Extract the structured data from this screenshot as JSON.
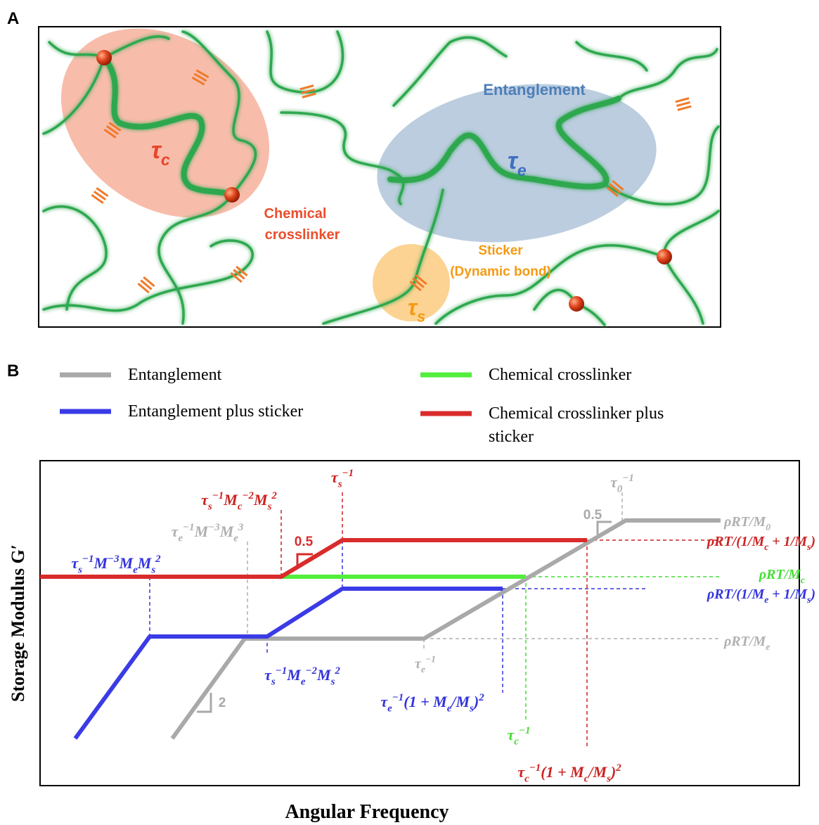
{
  "panel_a": {
    "label": "A",
    "tau_c": [
      {
        "t": "τ"
      },
      {
        "sub": "c"
      }
    ],
    "entanglement": "Entanglement",
    "tau_e": [
      {
        "t": "τ"
      },
      {
        "sub": "e"
      }
    ],
    "crosslinker_lines": [
      "Chemical",
      "crosslinker"
    ],
    "sticker_lines": [
      "Sticker",
      "(Dynamic bond)"
    ],
    "tau_s": [
      {
        "t": "τ"
      },
      {
        "sub": "s"
      }
    ]
  },
  "panel_b": {
    "label": "B",
    "legend": [
      {
        "name": "Entanglement",
        "color": "#a9a9a9"
      },
      {
        "name": "Entanglement plus sticker",
        "color": "#3b3be6"
      },
      {
        "name": "Chemical crosslinker",
        "color": "#52ee3c"
      },
      {
        "name": "Chemical crosslinker plus sticker",
        "color": "#d92b2b"
      }
    ],
    "y_axis_label": "Storage Modulus G′",
    "x_axis_label": "Angular Frequency",
    "slopes": [
      "0.5",
      "0.5",
      "2"
    ],
    "annotations": [
      {
        "color": "#3333dd",
        "parts": [
          {
            "t": "τ"
          },
          {
            "sub": "s"
          },
          {
            "sup": "−1"
          },
          {
            "t": "M"
          },
          {
            "sup": "−3"
          },
          {
            "t": "M"
          },
          {
            "sub": "e"
          },
          {
            "t": "M"
          },
          {
            "sub": "s"
          },
          {
            "sup": "2"
          }
        ]
      },
      {
        "color": "#b0b0b0",
        "parts": [
          {
            "t": "τ"
          },
          {
            "sub": "e"
          },
          {
            "sup": "−1"
          },
          {
            "t": "M"
          },
          {
            "sup": "−3"
          },
          {
            "t": "M"
          },
          {
            "sub": "e"
          },
          {
            "sup": "3"
          }
        ]
      },
      {
        "color": "#cc2222",
        "parts": [
          {
            "t": "τ"
          },
          {
            "sub": "s"
          },
          {
            "sup": "−1"
          },
          {
            "t": "M"
          },
          {
            "sub": "c"
          },
          {
            "sup": "−2"
          },
          {
            "t": "M"
          },
          {
            "sub": "s"
          },
          {
            "sup": "2"
          }
        ]
      },
      {
        "color": "#cc2222",
        "parts": [
          {
            "t": "τ"
          },
          {
            "sub": "s"
          },
          {
            "sup": "−1"
          }
        ]
      },
      {
        "color": "#b0b0b0",
        "parts": [
          {
            "t": "τ"
          },
          {
            "sub": "0"
          },
          {
            "sup": "−1"
          }
        ]
      },
      {
        "color": "#b0b0b0",
        "parts": [
          {
            "t": "ρRT/M"
          },
          {
            "sub": "0"
          }
        ]
      },
      {
        "color": "#cc2222",
        "parts": [
          {
            "t": "ρRT/(1/M"
          },
          {
            "sub": "c"
          },
          {
            "t": " + 1/M"
          },
          {
            "sub": "s"
          },
          {
            "t": ")"
          }
        ]
      },
      {
        "color": "#44dd33",
        "parts": [
          {
            "t": "ρRT/M"
          },
          {
            "sub": "c"
          }
        ]
      },
      {
        "color": "#3333dd",
        "parts": [
          {
            "t": "ρRT/(1/M"
          },
          {
            "sub": "e"
          },
          {
            "t": " + 1/M"
          },
          {
            "sub": "s"
          },
          {
            "t": ")"
          }
        ]
      },
      {
        "color": "#b0b0b0",
        "parts": [
          {
            "t": "ρRT/M"
          },
          {
            "sub": "e"
          }
        ]
      },
      {
        "color": "#3333dd",
        "parts": [
          {
            "t": "τ"
          },
          {
            "sub": "s"
          },
          {
            "sup": "−1"
          },
          {
            "t": "M"
          },
          {
            "sub": "e"
          },
          {
            "sup": "−2"
          },
          {
            "t": "M"
          },
          {
            "sub": "s"
          },
          {
            "sup": "2"
          }
        ]
      },
      {
        "color": "#b0b0b0",
        "parts": [
          {
            "t": "τ"
          },
          {
            "sub": "e"
          },
          {
            "sup": "−1"
          }
        ]
      },
      {
        "color": "#3333dd",
        "parts": [
          {
            "t": "τ"
          },
          {
            "sub": "e"
          },
          {
            "sup": "−1"
          },
          {
            "t": "(1 + M"
          },
          {
            "sub": "e"
          },
          {
            "t": "/M"
          },
          {
            "sub": "s"
          },
          {
            "t": ")"
          },
          {
            "sup": "2"
          }
        ]
      },
      {
        "color": "#44dd33",
        "parts": [
          {
            "t": "τ"
          },
          {
            "sub": "c"
          },
          {
            "sup": "−1"
          }
        ]
      },
      {
        "color": "#cc2222",
        "parts": [
          {
            "t": "τ"
          },
          {
            "sub": "c"
          },
          {
            "sup": "−1"
          },
          {
            "t": "(1 + M"
          },
          {
            "sub": "c"
          },
          {
            "t": "/M"
          },
          {
            "sub": "s"
          },
          {
            "t": ")"
          },
          {
            "sup": "2"
          }
        ]
      }
    ]
  }
}
